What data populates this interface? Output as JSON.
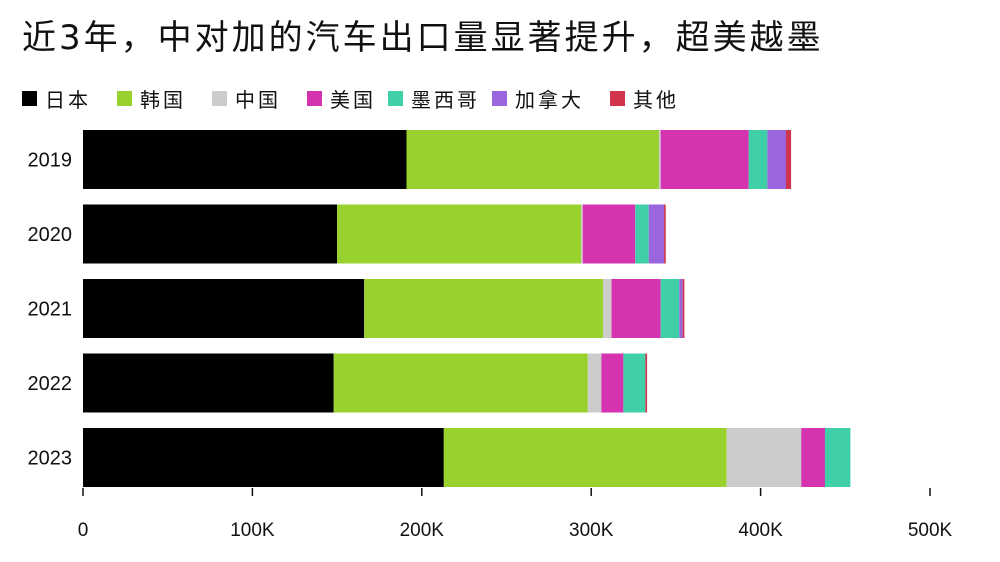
{
  "chart_data": {
    "type": "bar",
    "orientation": "horizontal",
    "stacked": true,
    "title": "近3年，中对加的汽车出口量显著提升，超美越墨",
    "legend_placement": "top-left",
    "xlim": [
      0,
      500000
    ],
    "x_ticks": [
      0,
      100000,
      200000,
      300000,
      400000,
      500000
    ],
    "x_tick_labels": [
      "0",
      "100K",
      "200K",
      "300K",
      "400K",
      "500K"
    ],
    "grid": false,
    "categories": [
      "2019",
      "2020",
      "2021",
      "2022",
      "2023"
    ],
    "series": [
      {
        "name": "日本",
        "color": "#000000",
        "values": [
          191000,
          150000,
          166000,
          148000,
          213000
        ]
      },
      {
        "name": "韩国",
        "color": "#99d22e",
        "values": [
          149000,
          144000,
          141000,
          150000,
          167000
        ]
      },
      {
        "name": "中国",
        "color": "#cccccc",
        "values": [
          1000,
          1000,
          5000,
          8000,
          44000
        ]
      },
      {
        "name": "美国",
        "color": "#d633b1",
        "values": [
          52000,
          31000,
          29000,
          13000,
          14000
        ]
      },
      {
        "name": "墨西哥",
        "color": "#3fd0a8",
        "values": [
          11000,
          8000,
          11000,
          13000,
          15000
        ]
      },
      {
        "name": "加拿大",
        "color": "#9966dd",
        "values": [
          11000,
          9000,
          2000,
          0,
          0
        ]
      },
      {
        "name": "其他",
        "color": "#d1344d",
        "values": [
          3000,
          1000,
          1000,
          1000,
          0
        ]
      }
    ]
  }
}
